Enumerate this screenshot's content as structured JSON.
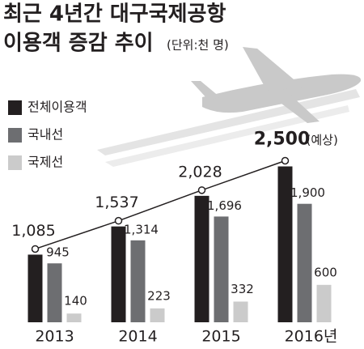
{
  "chart_data": {
    "type": "bar",
    "title": [
      "최근 4년간 대구국제공항",
      "이용객 증감 추이"
    ],
    "unit": "(단위:천 명)",
    "annotation": "(예상)",
    "categories": [
      "2013",
      "2014",
      "2015",
      "2016년"
    ],
    "series": [
      {
        "name": "전체이용객",
        "color": "#231f20",
        "values": [
          1085,
          1537,
          2028,
          2500
        ],
        "value_labels": [
          "1,085",
          "1,537",
          "2,028",
          "2,500"
        ]
      },
      {
        "name": "국내선",
        "color": "#6d6e71",
        "values": [
          945,
          1314,
          1696,
          1900
        ],
        "value_labels": [
          "945",
          "1,314",
          "1,696",
          "1,900"
        ]
      },
      {
        "name": "국제선",
        "color": "#cbcbcb",
        "values": [
          140,
          223,
          332,
          600
        ]
      }
    ]
  }
}
